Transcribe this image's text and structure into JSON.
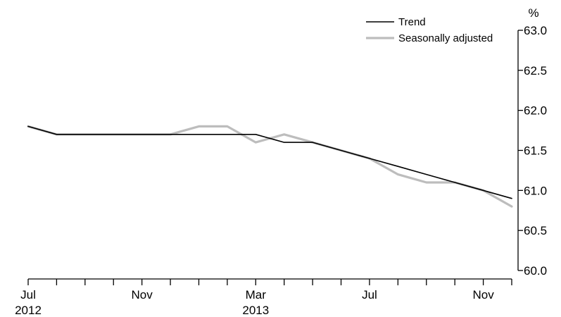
{
  "chart_data": {
    "type": "line",
    "y_unit": "%",
    "ylim": [
      60.0,
      63.0
    ],
    "y_ticks": [
      "60.0",
      "60.5",
      "61.0",
      "61.5",
      "62.0",
      "62.5",
      "63.0"
    ],
    "x": [
      "2012-07",
      "2012-08",
      "2012-09",
      "2012-10",
      "2012-11",
      "2012-12",
      "2013-01",
      "2013-02",
      "2013-03",
      "2013-04",
      "2013-05",
      "2013-06",
      "2013-07",
      "2013-08",
      "2013-09",
      "2013-10",
      "2013-11",
      "2013-12"
    ],
    "x_tick_labels": [
      {
        "month": "Jul",
        "year": "2012",
        "x": "2012-07"
      },
      {
        "month": "Nov",
        "year": "",
        "x": "2012-11"
      },
      {
        "month": "Mar",
        "year": "2013",
        "x": "2013-03"
      },
      {
        "month": "Jul",
        "year": "",
        "x": "2013-07"
      },
      {
        "month": "Nov",
        "year": "",
        "x": "2013-11"
      }
    ],
    "series": [
      {
        "name": "Trend",
        "color": "#000000",
        "values": [
          61.8,
          61.7,
          61.7,
          61.7,
          61.7,
          61.7,
          61.7,
          61.7,
          61.7,
          61.6,
          61.6,
          61.5,
          61.4,
          61.3,
          61.2,
          61.1,
          61.0,
          60.9
        ]
      },
      {
        "name": "Seasonally adjusted",
        "color": "#bdbdbd",
        "values": [
          61.8,
          61.7,
          61.7,
          61.7,
          61.7,
          61.7,
          61.8,
          61.8,
          61.6,
          61.7,
          61.6,
          61.5,
          61.4,
          61.2,
          61.1,
          61.1,
          61.0,
          60.8
        ]
      }
    ],
    "legend": "top-right",
    "grid": false
  }
}
